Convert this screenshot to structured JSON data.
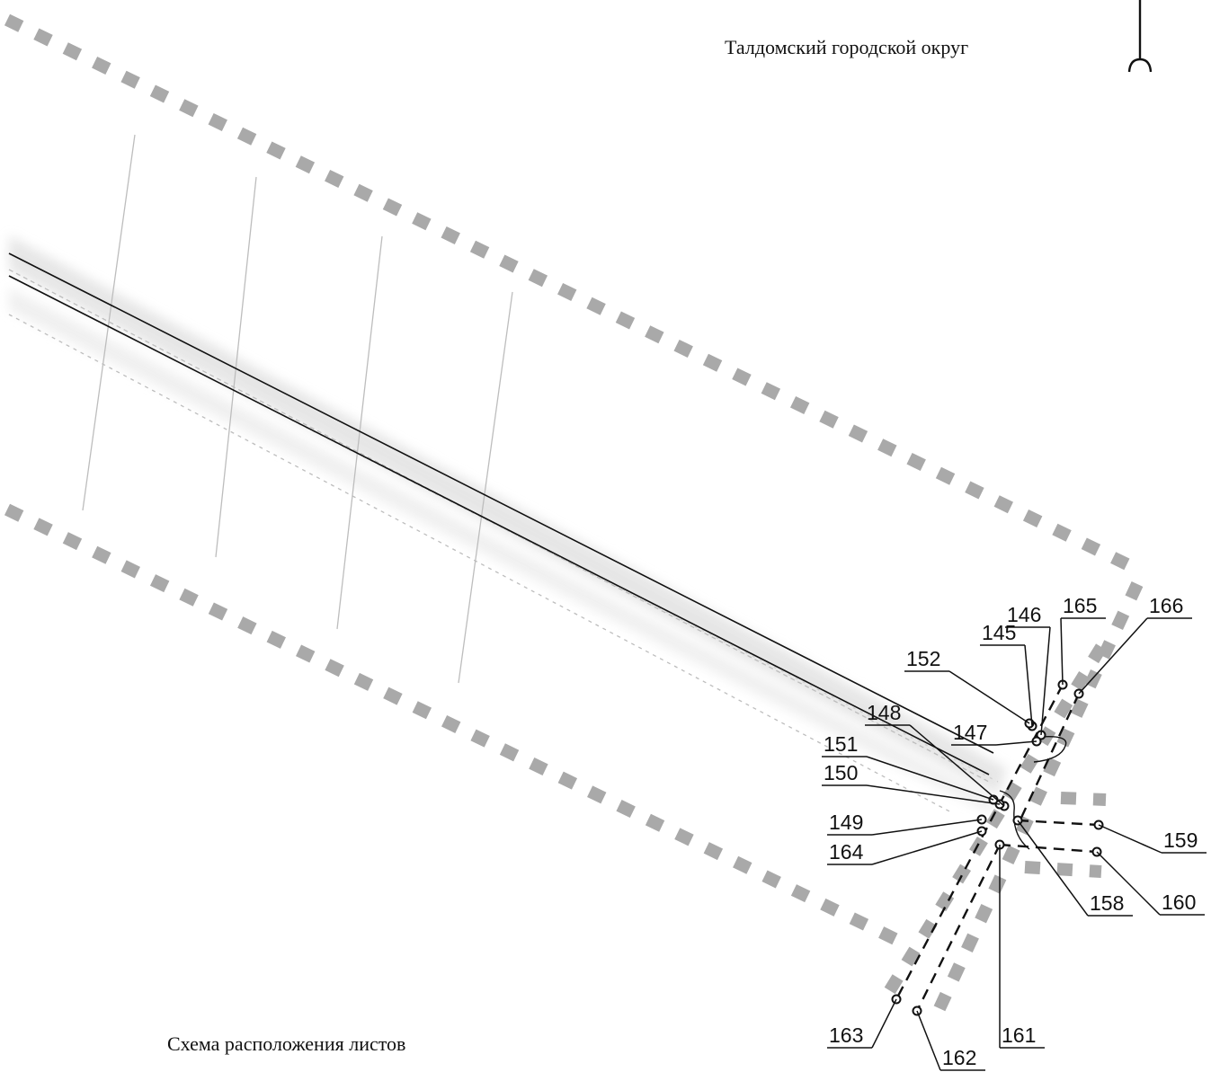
{
  "header": {
    "district_name": "Талдомский городской округ"
  },
  "footer": {
    "scheme_caption": "Схема расположения листов"
  },
  "colors": {
    "boundary_dash": "#a9a9a9",
    "line": "#111111",
    "faint_line": "#bdbdbd",
    "haze": "#dcdcdc"
  },
  "icons": {
    "north_arrow": "north-arrow-icon"
  },
  "points": [
    {
      "id": "145",
      "label": "145"
    },
    {
      "id": "146",
      "label": "146"
    },
    {
      "id": "147",
      "label": "147"
    },
    {
      "id": "148",
      "label": "148"
    },
    {
      "id": "149",
      "label": "149"
    },
    {
      "id": "150",
      "label": "150"
    },
    {
      "id": "151",
      "label": "151"
    },
    {
      "id": "152",
      "label": "152"
    },
    {
      "id": "158",
      "label": "158"
    },
    {
      "id": "159",
      "label": "159"
    },
    {
      "id": "160",
      "label": "160"
    },
    {
      "id": "161",
      "label": "161"
    },
    {
      "id": "162",
      "label": "162"
    },
    {
      "id": "163",
      "label": "163"
    },
    {
      "id": "164",
      "label": "164"
    },
    {
      "id": "165",
      "label": "165"
    },
    {
      "id": "166",
      "label": "166"
    }
  ]
}
